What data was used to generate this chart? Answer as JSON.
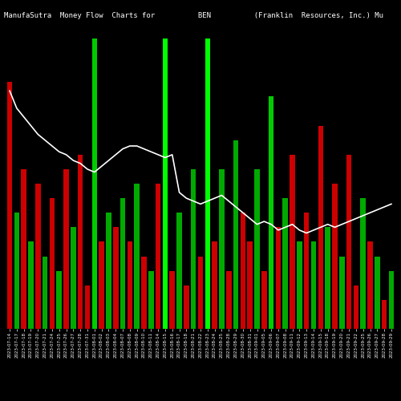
{
  "title": "ManufaSutra  Money Flow  Charts for          BEN          (Franklin  Resources, Inc.) Mu",
  "bg_color": "#000000",
  "n_bars": 55,
  "xlabels": [
    "2023-07-14",
    "2023-07-17",
    "2023-07-18",
    "2023-07-19",
    "2023-07-20",
    "2023-07-21",
    "2023-07-24",
    "2023-07-25",
    "2023-07-26",
    "2023-07-27",
    "2023-07-28",
    "2023-07-31",
    "2023-08-01",
    "2023-08-02",
    "2023-08-03",
    "2023-08-04",
    "2023-08-07",
    "2023-08-08",
    "2023-08-09",
    "2023-08-10",
    "2023-08-11",
    "2023-08-14",
    "2023-08-15",
    "2023-08-16",
    "2023-08-17",
    "2023-08-18",
    "2023-08-21",
    "2023-08-22",
    "2023-08-23",
    "2023-08-24",
    "2023-08-25",
    "2023-08-28",
    "2023-08-29",
    "2023-08-30",
    "2023-08-31",
    "2023-09-01",
    "2023-09-05",
    "2023-09-06",
    "2023-09-07",
    "2023-09-08",
    "2023-09-11",
    "2023-09-12",
    "2023-09-13",
    "2023-09-14",
    "2023-09-15",
    "2023-09-18",
    "2023-09-19",
    "2023-09-20",
    "2023-09-21",
    "2023-09-22",
    "2023-09-25",
    "2023-09-26",
    "2023-09-27",
    "2023-09-28",
    "2023-09-29"
  ],
  "bar_heights": [
    85,
    40,
    55,
    30,
    50,
    25,
    45,
    20,
    55,
    35,
    60,
    15,
    100,
    30,
    40,
    35,
    45,
    30,
    50,
    25,
    20,
    50,
    100,
    20,
    40,
    15,
    55,
    25,
    100,
    30,
    55,
    20,
    65,
    40,
    30,
    55,
    20,
    80,
    35,
    45,
    60,
    30,
    40,
    30,
    70,
    35,
    50,
    25,
    60,
    15,
    45,
    30,
    25,
    10,
    20
  ],
  "bar_colors": [
    "#cc0000",
    "#00aa00",
    "#cc0000",
    "#00aa00",
    "#cc0000",
    "#00aa00",
    "#cc0000",
    "#00aa00",
    "#cc0000",
    "#00aa00",
    "#cc0000",
    "#cc0000",
    "#00cc00",
    "#cc0000",
    "#00aa00",
    "#cc0000",
    "#00aa00",
    "#cc0000",
    "#00aa00",
    "#cc0000",
    "#00aa00",
    "#cc0000",
    "#00ff00",
    "#cc0000",
    "#00aa00",
    "#cc0000",
    "#00aa00",
    "#cc0000",
    "#00ff00",
    "#cc0000",
    "#00aa00",
    "#cc0000",
    "#00aa00",
    "#cc0000",
    "#cc0000",
    "#00aa00",
    "#cc0000",
    "#00cc00",
    "#cc0000",
    "#00aa00",
    "#cc0000",
    "#00aa00",
    "#cc0000",
    "#00aa00",
    "#cc0000",
    "#00aa00",
    "#cc0000",
    "#00aa00",
    "#cc0000",
    "#cc0000",
    "#00aa00",
    "#cc0000",
    "#00aa00",
    "#cc0000",
    "#00aa00"
  ],
  "line_values": [
    82,
    76,
    73,
    70,
    67,
    65,
    63,
    61,
    60,
    58,
    57,
    55,
    54,
    56,
    58,
    60,
    62,
    63,
    63,
    62,
    61,
    60,
    59,
    60,
    47,
    45,
    44,
    43,
    44,
    45,
    46,
    44,
    42,
    40,
    38,
    36,
    37,
    36,
    34,
    35,
    36,
    34,
    33,
    34,
    35,
    36,
    35,
    36,
    37,
    38,
    39,
    40,
    41,
    42,
    43
  ],
  "title_color": "#ffffff",
  "title_fontsize": 6.5,
  "line_color": "#ffffff",
  "tick_fontsize": 4.0,
  "bar_max": 100
}
